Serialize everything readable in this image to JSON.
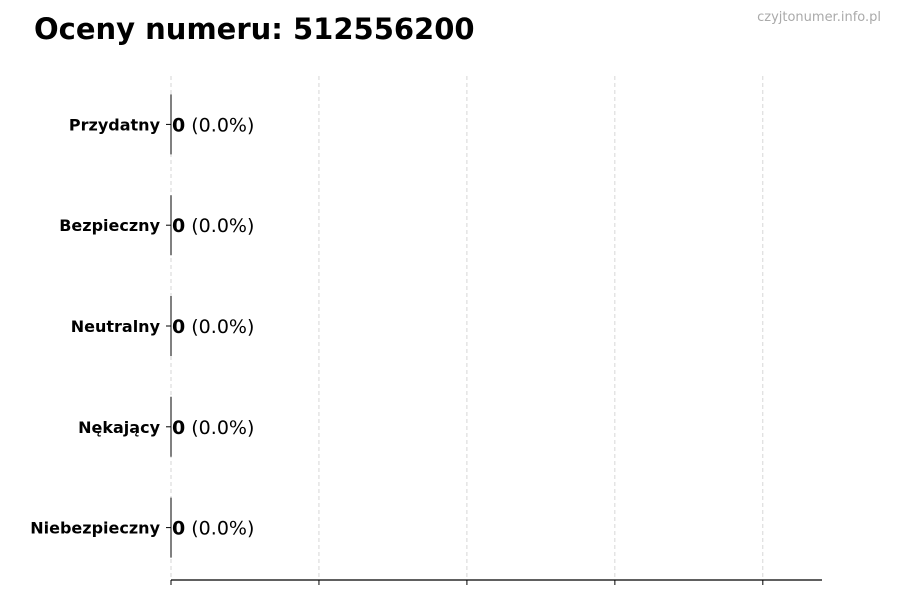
{
  "chart_data": {
    "type": "bar",
    "orientation": "horizontal",
    "title": "Oceny numeru: 512556200",
    "watermark": "czyjtonumer.info.pl",
    "categories": [
      "Przydatny",
      "Bezpieczny",
      "Neutralny",
      "Nękający",
      "Niebezpieczny"
    ],
    "values": [
      0,
      0,
      0,
      0,
      0
    ],
    "value_labels": [
      "0",
      "0",
      "0",
      "0",
      "0"
    ],
    "percent_labels": [
      "(0.0%)",
      "(0.0%)",
      "(0.0%)",
      "(0.0%)",
      "(0.0%)"
    ],
    "xlabel": "",
    "ylabel": "",
    "xlim": [
      0,
      4.4
    ],
    "xticks": [
      0,
      1,
      2,
      3,
      4
    ],
    "xtick_labels_shown": false,
    "grid": "x, dashed",
    "legend": "none",
    "colors": {
      "bar_edge": "#000000",
      "grid": "#cccccc",
      "watermark": "#aaaaaa"
    }
  }
}
